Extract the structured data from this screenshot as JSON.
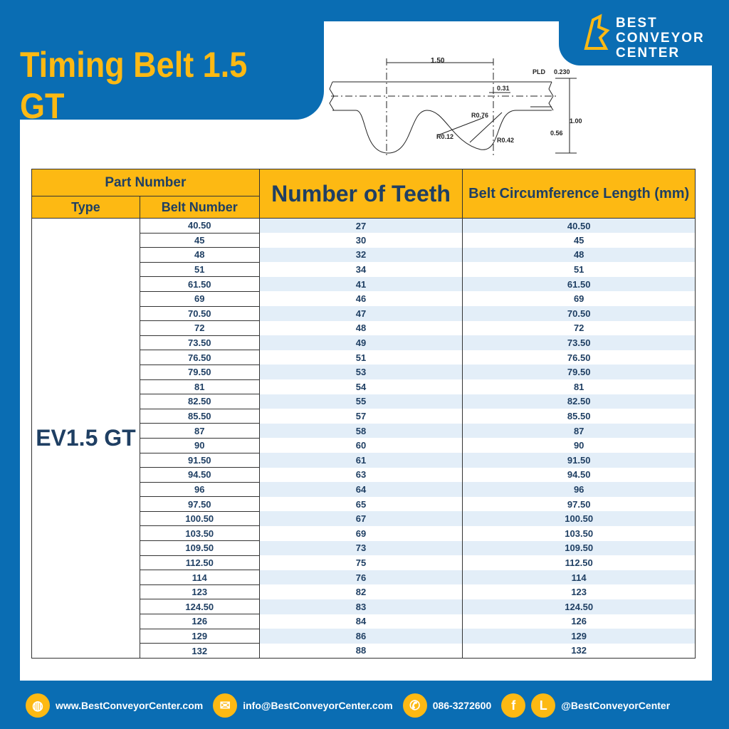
{
  "title": "Timing Belt 1.5 GT",
  "logo": {
    "line1": "BEST CONVEYOR",
    "line2": "CENTER"
  },
  "diagram": {
    "pitch": "1.50",
    "pld": "PLD",
    "pld_value": "0.230",
    "d031": "0.31",
    "r076": "R0.76",
    "r012": "R0.12",
    "r042": "R0.42",
    "h100": "1.00",
    "h056": "0.56"
  },
  "table": {
    "headers": {
      "part_number": "Part Number",
      "type": "Type",
      "belt_number": "Belt Number",
      "teeth": "Number of Teeth",
      "circumference": "Belt Circumference Length (mm)"
    },
    "type_value": "EV1.5 GT",
    "rows": [
      [
        "40.50",
        "27",
        "40.50"
      ],
      [
        "45",
        "30",
        "45"
      ],
      [
        "48",
        "32",
        "48"
      ],
      [
        "51",
        "34",
        "51"
      ],
      [
        "61.50",
        "41",
        "61.50"
      ],
      [
        "69",
        "46",
        "69"
      ],
      [
        "70.50",
        "47",
        "70.50"
      ],
      [
        "72",
        "48",
        "72"
      ],
      [
        "73.50",
        "49",
        "73.50"
      ],
      [
        "76.50",
        "51",
        "76.50"
      ],
      [
        "79.50",
        "53",
        "79.50"
      ],
      [
        "81",
        "54",
        "81"
      ],
      [
        "82.50",
        "55",
        "82.50"
      ],
      [
        "85.50",
        "57",
        "85.50"
      ],
      [
        "87",
        "58",
        "87"
      ],
      [
        "90",
        "60",
        "90"
      ],
      [
        "91.50",
        "61",
        "91.50"
      ],
      [
        "94.50",
        "63",
        "94.50"
      ],
      [
        "96",
        "64",
        "96"
      ],
      [
        "97.50",
        "65",
        "97.50"
      ],
      [
        "100.50",
        "67",
        "100.50"
      ],
      [
        "103.50",
        "69",
        "103.50"
      ],
      [
        "109.50",
        "73",
        "109.50"
      ],
      [
        "112.50",
        "75",
        "112.50"
      ],
      [
        "114",
        "76",
        "114"
      ],
      [
        "123",
        "82",
        "123"
      ],
      [
        "124.50",
        "83",
        "124.50"
      ],
      [
        "126",
        "84",
        "126"
      ],
      [
        "129",
        "86",
        "129"
      ],
      [
        "132",
        "88",
        "132"
      ]
    ]
  },
  "footer": {
    "website": "www.BestConveyorCenter.com",
    "email": "info@BestConveyorCenter.com",
    "phone": "086-3272600",
    "social": "@BestConveyorCenter"
  },
  "colors": {
    "brand_blue": "#0a6db3",
    "accent_yellow": "#fdb913",
    "text_navy": "#1f3f63"
  }
}
